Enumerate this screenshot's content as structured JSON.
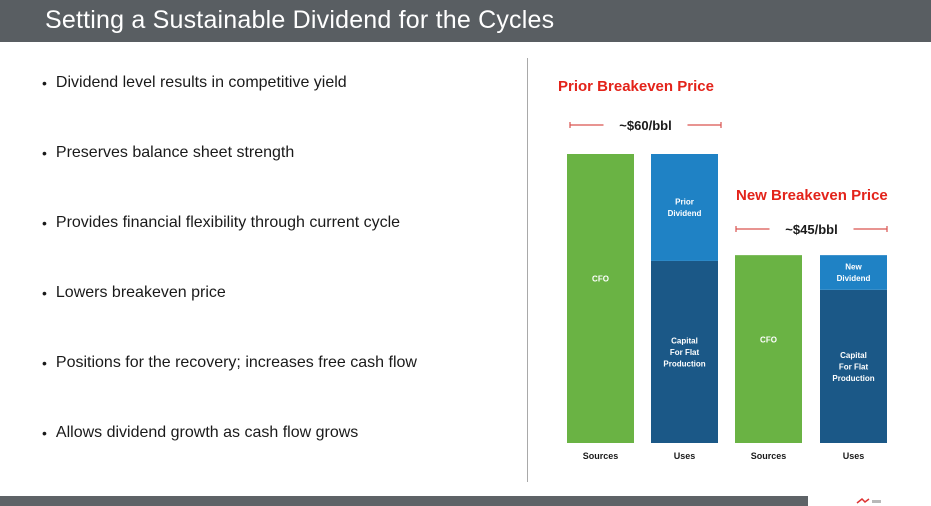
{
  "slide": {
    "title": "Setting a Sustainable Dividend for the Cycles",
    "bullets": [
      "Dividend level results in competitive yield",
      "Preserves balance sheet strength",
      "Provides financial flexibility through current cycle",
      "Lowers breakeven price",
      "Positions for the recovery; increases free cash flow",
      "Allows dividend growth as cash flow grows"
    ]
  },
  "colors": {
    "title_bar": "#595e62",
    "cfo_green": "#6ab344",
    "capital_navy": "#1b5887",
    "dividend_blue": "#1f82c5",
    "heading_red": "#e3231a",
    "bracket_red": "#d9534f"
  },
  "chart_data": {
    "type": "bar",
    "stacked": true,
    "categories": [
      "Sources",
      "Uses",
      "Sources",
      "Uses"
    ],
    "bars": [
      {
        "category": "Sources",
        "segments": [
          {
            "label": "CFO",
            "value": 1.0,
            "color": "#6ab344"
          }
        ]
      },
      {
        "category": "Uses",
        "segments": [
          {
            "label": "Capital For Flat Production",
            "value": 0.63,
            "color": "#1b5887"
          },
          {
            "label": "Prior Dividend",
            "value": 0.37,
            "color": "#1f82c5"
          }
        ]
      },
      {
        "category": "Sources",
        "segments": [
          {
            "label": "CFO",
            "value": 0.65,
            "color": "#6ab344"
          }
        ]
      },
      {
        "category": "Uses",
        "segments": [
          {
            "label": "Capital For Flat Production",
            "value": 0.53,
            "color": "#1b5887"
          },
          {
            "label": "New Dividend",
            "value": 0.12,
            "color": "#1f82c5"
          }
        ]
      }
    ],
    "annotations": [
      {
        "heading": "Prior Breakeven Price",
        "price": "~$60/bbl"
      },
      {
        "heading": "New Breakeven Price",
        "price": "~$45/bbl"
      }
    ],
    "ylim": [
      0,
      1
    ],
    "grid": false,
    "legend": "none"
  }
}
